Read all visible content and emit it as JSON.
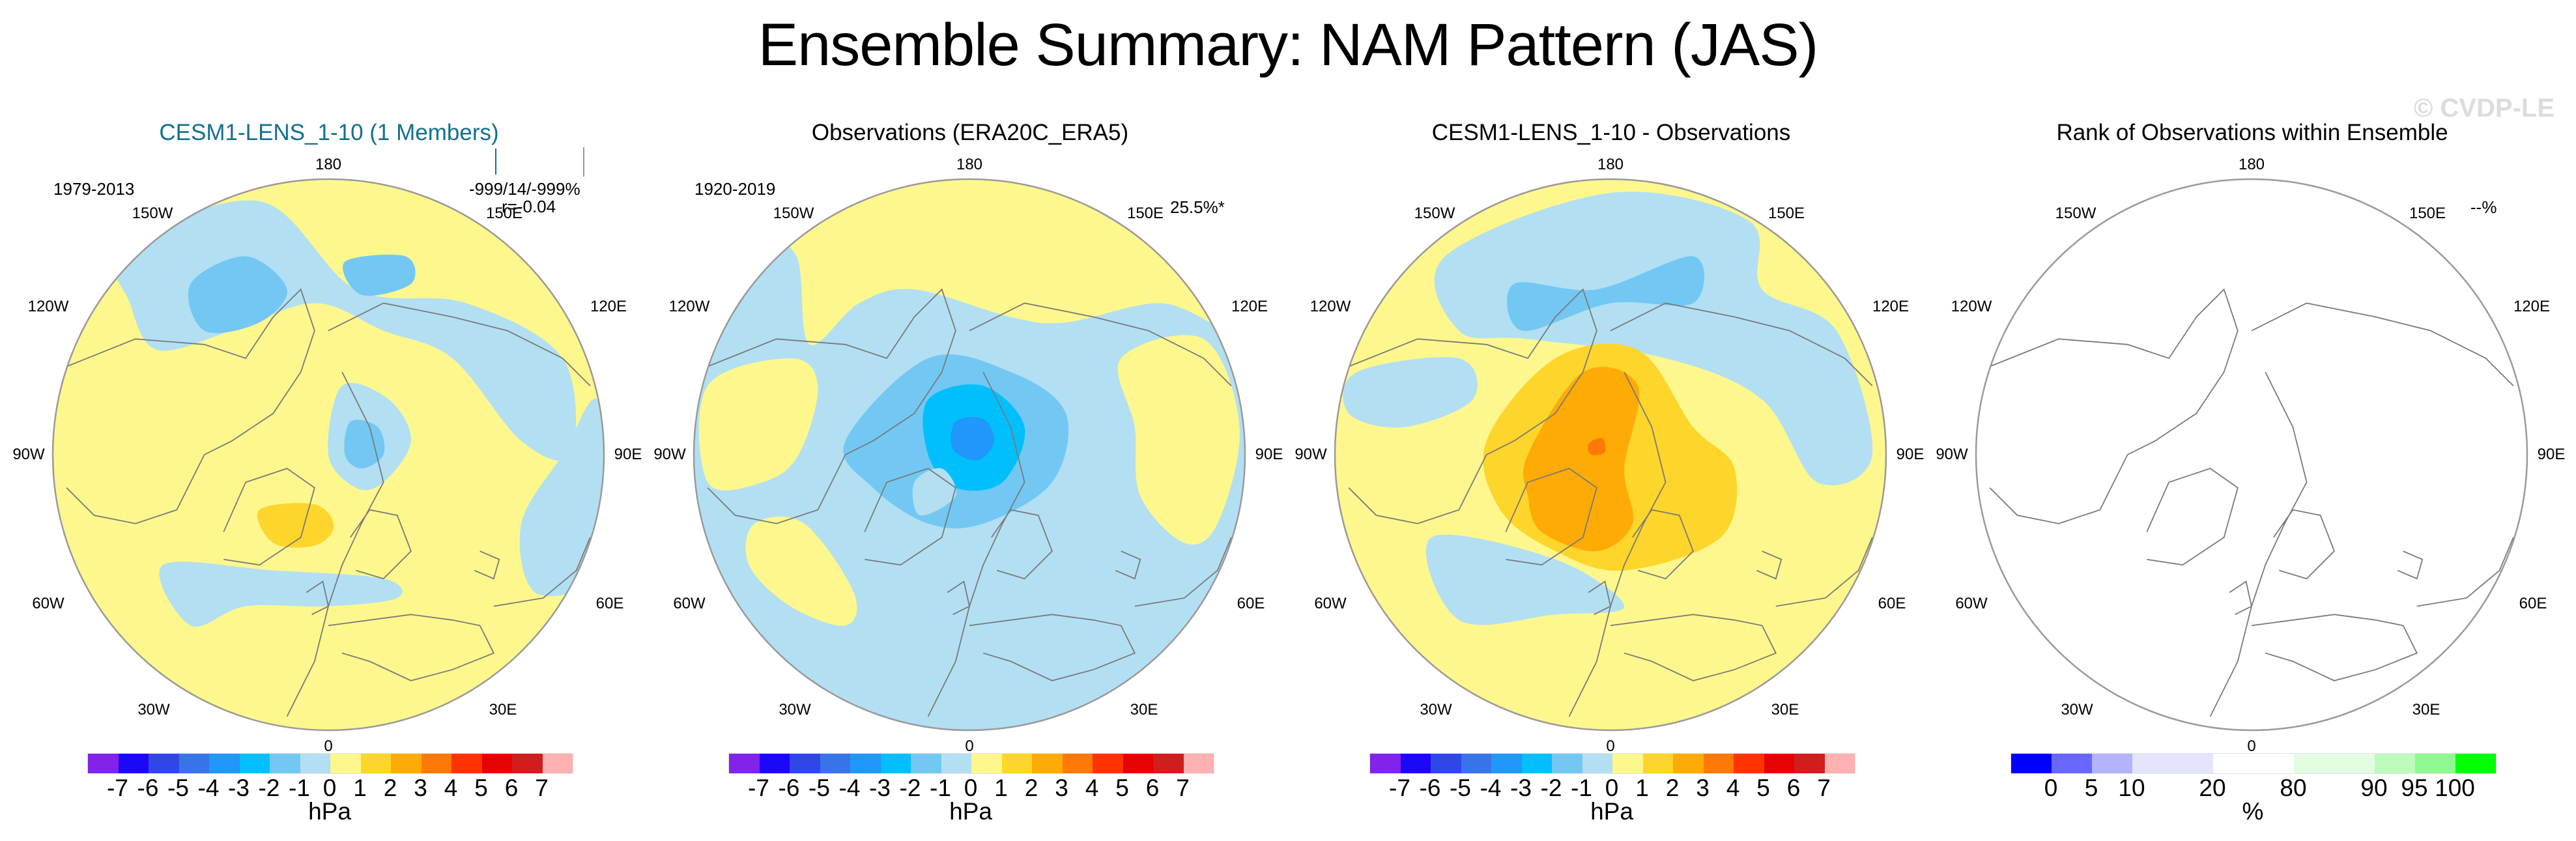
{
  "title": "Ensemble Summary: NAM Pattern (JAS)",
  "watermark": "© CVDP-LE",
  "lon_labels": [
    "180",
    "150W",
    "150E",
    "120W",
    "120E",
    "90W",
    "90E",
    "60W",
    "60E",
    "30W",
    "30E",
    "0"
  ],
  "colors": {
    "title_model": "#13708f",
    "land_outline": "#7a7a7a",
    "map_border": "#9a9a9a"
  },
  "chart_data": [
    {
      "type": "heatmap",
      "projection": "north-polar-stereographic",
      "title": "CESM1-LENS_1-10 (1 Members)",
      "title_color": "#13708f",
      "period": "1979-2013",
      "stats_line1": "-999/14/-999%",
      "stats_line2": "r=-0.04",
      "units": "hPa",
      "colorbar": {
        "levels": [
          "-7",
          "-6",
          "-5",
          "-4",
          "-3",
          "-2",
          "-1",
          "0",
          "1",
          "2",
          "3",
          "4",
          "5",
          "6",
          "7"
        ],
        "colors": [
          "#8222eb",
          "#1c07f7",
          "#2f47e8",
          "#3774ea",
          "#1f97fb",
          "#01bffd",
          "#72c8f3",
          "#b3dff3",
          "#fef78d",
          "#fed52b",
          "#ffab05",
          "#ff7904",
          "#ff3300",
          "#e70202",
          "#d11d1d",
          "#ffb0b0"
        ]
      },
      "features": [
        {
          "region": "background",
          "value_range": [
            0,
            1
          ]
        },
        {
          "region": "North Pacific trough (two lobes)",
          "value_range": [
            -2,
            -1
          ]
        },
        {
          "region": "Pacific/Siberian broad band",
          "value_range": [
            -1,
            0
          ]
        },
        {
          "region": "Arctic (Kara/Barents) low",
          "value_range": [
            -2,
            -1
          ]
        },
        {
          "region": "Greenland high",
          "value_range": [
            1,
            2
          ]
        },
        {
          "region": "North Atlantic band",
          "value_range": [
            -1,
            0
          ]
        },
        {
          "region": "Central Asia band",
          "value_range": [
            -1,
            0
          ]
        }
      ]
    },
    {
      "type": "heatmap",
      "projection": "north-polar-stereographic",
      "title": "Observations (ERA20C_ERA5)",
      "period": "1920-2019",
      "stats_line1": "25.5%*",
      "units": "hPa",
      "colorbar": {
        "levels": [
          "-7",
          "-6",
          "-5",
          "-4",
          "-3",
          "-2",
          "-1",
          "0",
          "1",
          "2",
          "3",
          "4",
          "5",
          "6",
          "7"
        ],
        "colors": [
          "#8222eb",
          "#1c07f7",
          "#2f47e8",
          "#3774ea",
          "#1f97fb",
          "#01bffd",
          "#72c8f3",
          "#b3dff3",
          "#fef78d",
          "#fed52b",
          "#ffab05",
          "#ff7904",
          "#ff3300",
          "#e70202",
          "#d11d1d",
          "#ffb0b0"
        ]
      },
      "features": [
        {
          "region": "background",
          "value_range": [
            -1,
            0
          ]
        },
        {
          "region": "Arctic polar low core",
          "value_range": [
            -4,
            -3
          ]
        },
        {
          "region": "Arctic polar low middle",
          "value_range": [
            -3,
            -2
          ]
        },
        {
          "region": "Arctic polar low outer",
          "value_range": [
            -2,
            -1
          ]
        },
        {
          "region": "North Pacific high",
          "value_range": [
            0,
            1
          ]
        },
        {
          "region": "Subtropical Atlantic high",
          "value_range": [
            0,
            1
          ]
        },
        {
          "region": "North America high",
          "value_range": [
            0,
            1
          ]
        },
        {
          "region": "Central Asia high (noisy)",
          "value_range": [
            0,
            2
          ]
        }
      ]
    },
    {
      "type": "heatmap",
      "projection": "north-polar-stereographic",
      "title": "CESM1-LENS_1-10 - Observations",
      "units": "hPa",
      "colorbar": {
        "levels": [
          "-7",
          "-6",
          "-5",
          "-4",
          "-3",
          "-2",
          "-1",
          "0",
          "1",
          "2",
          "3",
          "4",
          "5",
          "6",
          "7"
        ],
        "colors": [
          "#8222eb",
          "#1c07f7",
          "#2f47e8",
          "#3774ea",
          "#1f97fb",
          "#01bffd",
          "#72c8f3",
          "#b3dff3",
          "#fef78d",
          "#fed52b",
          "#ffab05",
          "#ff7904",
          "#ff3300",
          "#e70202",
          "#d11d1d",
          "#ffb0b0"
        ]
      },
      "features": [
        {
          "region": "background",
          "value_range": [
            0,
            1
          ]
        },
        {
          "region": "Arctic positive core",
          "value_range": [
            2,
            3
          ]
        },
        {
          "region": "Arctic positive outer",
          "value_range": [
            1,
            2
          ]
        },
        {
          "region": "North Pacific trough (two lobes)",
          "value_range": [
            -2,
            -1
          ]
        },
        {
          "region": "North Pacific band",
          "value_range": [
            -1,
            0
          ]
        },
        {
          "region": "North Atlantic band",
          "value_range": [
            -1,
            0
          ]
        },
        {
          "region": "Siberia band",
          "value_range": [
            -1,
            0
          ]
        }
      ]
    },
    {
      "type": "heatmap",
      "projection": "north-polar-stereographic",
      "title": "Rank of Observations within Ensemble",
      "stats_line1": "--%",
      "units": "%",
      "colorbar": {
        "levels": [
          "0",
          "5",
          "10",
          "20",
          "80",
          "90",
          "95",
          "100"
        ],
        "colors": [
          "#0000ff",
          "#6767ff",
          "#b3b3ff",
          "#e4e4fc",
          "#ffffff",
          "#e2fde2",
          "#bcfbbc",
          "#8ff98f",
          "#00ff00"
        ],
        "widths": [
          1,
          1,
          1,
          2,
          2,
          2,
          1,
          1,
          1
        ]
      },
      "features": []
    }
  ]
}
